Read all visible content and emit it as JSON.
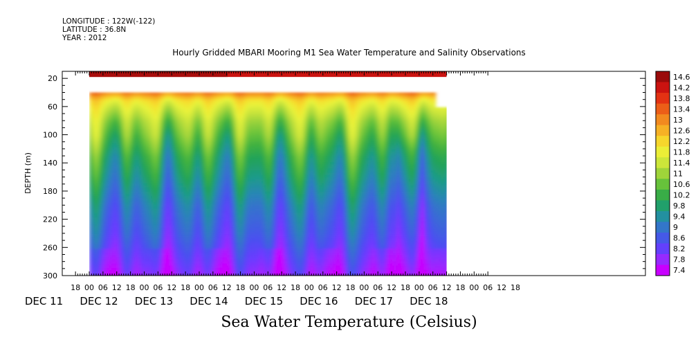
{
  "header": {
    "longitude": "LONGITUDE : 122W(-122)",
    "latitude": "LATITUDE : 36.8N",
    "year": "YEAR : 2012"
  },
  "chart_data": {
    "type": "heatmap",
    "title": "Hourly Gridded MBARI Mooring M1 Sea Water Temperature and Salinity Observations",
    "ylabel": "DEPTH (m)",
    "colorbar_label": "Sea Water Temperature (Celsius)",
    "y_axis_reversed": true,
    "ylim": [
      300,
      10
    ],
    "y_ticks": [
      20,
      60,
      100,
      140,
      180,
      220,
      260,
      300
    ],
    "x_hour_ticks": [
      "18",
      "00",
      "06",
      "12",
      "18",
      "00",
      "06",
      "12",
      "18",
      "00",
      "06",
      "12",
      "18",
      "00",
      "06",
      "12",
      "18",
      "00",
      "06",
      "12",
      "18",
      "00",
      "06",
      "12",
      "18",
      "00",
      "06",
      "12",
      "18",
      "00",
      "06",
      "12",
      "18"
    ],
    "x_day_labels": [
      "DEC 11",
      "DEC 12",
      "DEC 13",
      "DEC 14",
      "DEC 15",
      "DEC 16",
      "DEC 17",
      "DEC 18"
    ],
    "colorbar_ticks": [
      "14.6",
      "14.2",
      "13.8",
      "13.4",
      "13",
      "12.6",
      "12.2",
      "11.8",
      "11.4",
      "11",
      "10.6",
      "10.2",
      "9.8",
      "9.4",
      "9",
      "8.6",
      "8.2",
      "7.8",
      "7.4"
    ],
    "value_range": [
      7.4,
      14.6
    ],
    "data_extent": {
      "start": "DEC 12 00",
      "end": "DEC 18 12"
    },
    "surface_layer": {
      "depth_top": 10,
      "depth_bottom": 18,
      "temperature": 14.2
    },
    "missing_band": {
      "depth_top": 18,
      "depth_bottom": 40
    },
    "profile": [
      {
        "depth": 40,
        "temperature": 13.0
      },
      {
        "depth": 50,
        "temperature": 12.0
      },
      {
        "depth": 60,
        "temperature": 11.6
      },
      {
        "depth": 80,
        "temperature": 11.0
      },
      {
        "depth": 100,
        "temperature": 10.6
      },
      {
        "depth": 130,
        "temperature": 10.0
      },
      {
        "depth": 160,
        "temperature": 9.6
      },
      {
        "depth": 200,
        "temperature": 9.0
      },
      {
        "depth": 240,
        "temperature": 8.6
      },
      {
        "depth": 270,
        "temperature": 8.2
      },
      {
        "depth": 300,
        "temperature": 7.8
      }
    ]
  }
}
